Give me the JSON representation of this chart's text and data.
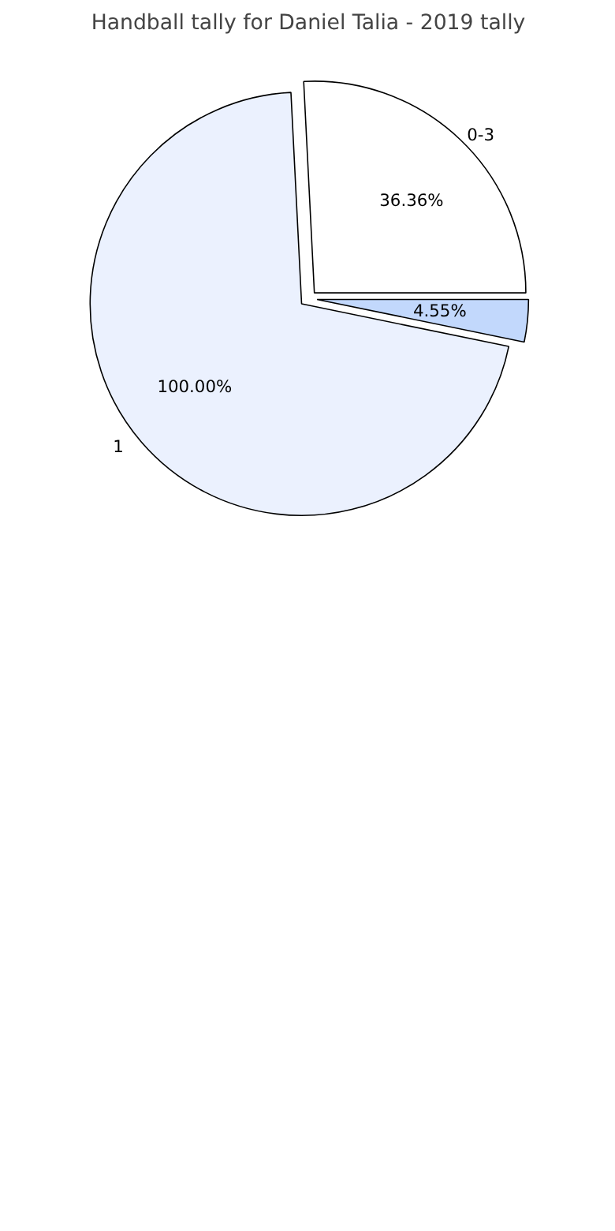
{
  "chart_data": {
    "type": "pie",
    "title": "Handball tally for Daniel Talia - 2019 tally",
    "categories": [
      "0-3",
      "1",
      null
    ],
    "values": [
      36.36,
      100.0,
      4.55
    ],
    "value_labels": [
      "36.36%",
      "100.00%",
      "4.55%"
    ],
    "colors": [
      "#ffffff",
      "#ebf1fe",
      "#c2d8fc"
    ]
  }
}
